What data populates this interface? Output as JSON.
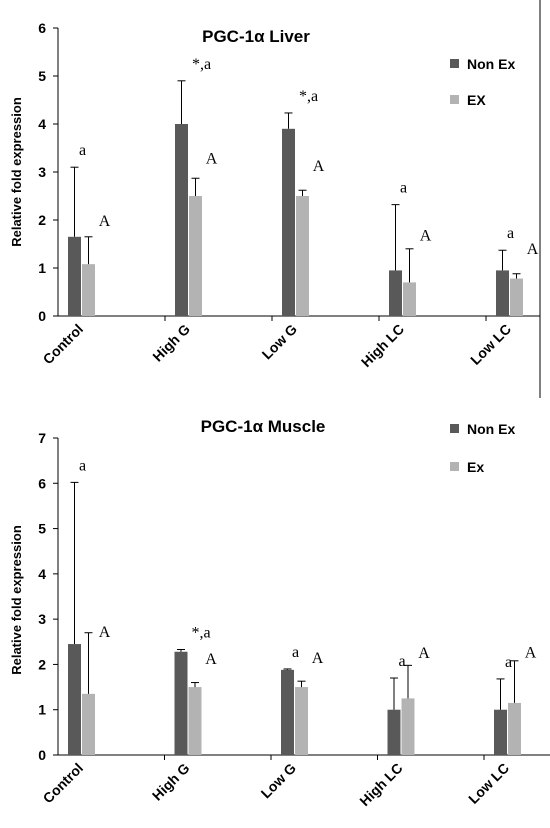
{
  "chart_data": [
    {
      "type": "bar",
      "title": "PGC-1α Liver",
      "ylabel": "Relative fold expression",
      "xlabel": "",
      "ylim": [
        0,
        6
      ],
      "yticks": [
        0,
        1,
        2,
        3,
        4,
        5,
        6
      ],
      "categories": [
        "Control",
        "High G",
        "Low G",
        "High LC",
        "Low LC"
      ],
      "legend_position": "right",
      "series": [
        {
          "name": "Non Ex",
          "color": "#595959",
          "values": [
            1.65,
            4.0,
            3.9,
            0.95,
            0.95
          ],
          "errors": [
            1.45,
            0.9,
            0.33,
            1.37,
            0.42
          ],
          "annotations": [
            "a",
            "*,a",
            "*,a",
            "a",
            "a"
          ]
        },
        {
          "name": "EX",
          "color": "#b3b3b3",
          "values": [
            1.08,
            2.5,
            2.5,
            0.7,
            0.78
          ],
          "errors": [
            0.57,
            0.37,
            0.12,
            0.7,
            0.1
          ],
          "annotations": [
            "A",
            "A",
            "A",
            "A",
            "A"
          ]
        }
      ]
    },
    {
      "type": "bar",
      "title": "PGC-1α Muscle",
      "ylabel": "Relative fold expression",
      "xlabel": "",
      "ylim": [
        0,
        7
      ],
      "yticks": [
        0,
        1,
        2,
        3,
        4,
        5,
        6,
        7
      ],
      "categories": [
        "Control",
        "High G",
        "Low G",
        "High LC",
        "Low LC"
      ],
      "legend_position": "top-right",
      "series": [
        {
          "name": "Non Ex",
          "color": "#595959",
          "values": [
            2.45,
            2.28,
            1.88,
            1.0,
            1.0
          ],
          "errors": [
            3.57,
            0.05,
            0.02,
            0.7,
            0.68
          ],
          "annotations": [
            "a",
            "*,a",
            "a",
            "a",
            "a"
          ]
        },
        {
          "name": "Ex",
          "color": "#b3b3b3",
          "values": [
            1.35,
            1.5,
            1.5,
            1.25,
            1.15
          ],
          "errors": [
            1.35,
            0.1,
            0.13,
            0.73,
            0.93
          ],
          "annotations": [
            "A",
            "A",
            "A",
            "A",
            "A"
          ]
        }
      ]
    }
  ]
}
